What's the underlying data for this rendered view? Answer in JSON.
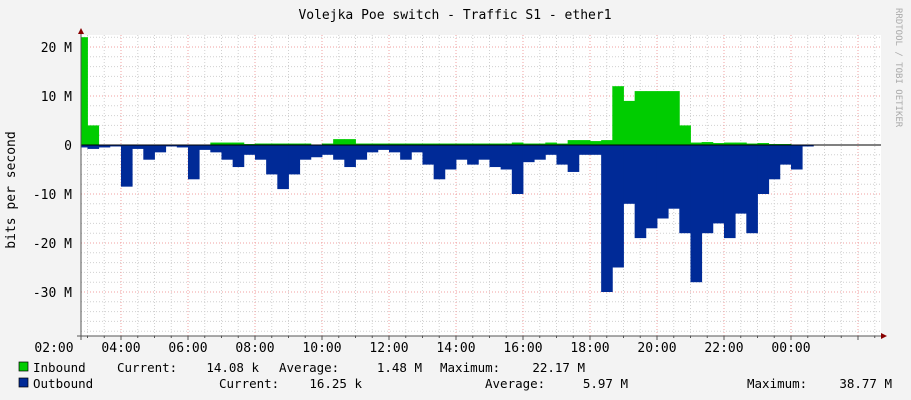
{
  "chart_data": {
    "type": "area",
    "title": "Volejka Poe switch - Traffic S1 - ether1",
    "ylabel": "bits per second",
    "xlabel": "",
    "ylim": [
      -38.8,
      22.4
    ],
    "y_unit": "M",
    "y_ticks": [
      20,
      10,
      0,
      -10,
      -20,
      -30
    ],
    "y_tick_labels": [
      "20 M",
      "10 M",
      "0",
      "-10 M",
      "-20 M",
      "-30 M"
    ],
    "x_tick_labels": [
      "04:00",
      "06:00",
      "08:00",
      "10:00",
      "12:00",
      "14:00",
      "16:00",
      "18:00",
      "20:00",
      "22:00",
      "00:00",
      "02:00"
    ],
    "grid": true,
    "watermark": "RRDTOOL / TOBI OETIKER",
    "x": [
      "02:50",
      "03:10",
      "03:30",
      "03:50",
      "04:10",
      "04:30",
      "04:50",
      "05:10",
      "05:30",
      "05:50",
      "06:10",
      "06:30",
      "06:50",
      "07:10",
      "07:30",
      "07:50",
      "08:10",
      "08:30",
      "08:50",
      "09:10",
      "09:30",
      "09:50",
      "10:10",
      "10:30",
      "10:50",
      "11:10",
      "11:30",
      "11:50",
      "12:10",
      "12:30",
      "12:50",
      "13:10",
      "13:30",
      "13:50",
      "14:10",
      "14:30",
      "14:50",
      "15:10",
      "15:30",
      "15:50",
      "16:10",
      "16:30",
      "16:50",
      "17:10",
      "17:30",
      "17:50",
      "18:10",
      "18:30",
      "18:50",
      "19:10",
      "19:30",
      "19:50",
      "20:10",
      "20:30",
      "20:50",
      "21:10",
      "21:30",
      "21:50",
      "22:10",
      "22:30",
      "22:50",
      "23:10",
      "23:30",
      "23:50",
      "00:10",
      "00:30",
      "00:50",
      "01:10",
      "01:30",
      "01:50",
      "02:10",
      "02:30"
    ],
    "series": [
      {
        "name": "Inbound",
        "color": "#00cc00",
        "values": [
          22,
          4,
          0,
          0,
          0,
          0,
          0,
          0,
          0,
          0.1,
          0.1,
          0.1,
          0.5,
          0.5,
          0.5,
          0.2,
          0.3,
          0.3,
          0.3,
          0.3,
          0.3,
          0.1,
          0.3,
          1.2,
          1.2,
          0.3,
          0.3,
          0.3,
          0.3,
          0.3,
          0.3,
          0.3,
          0.3,
          0.3,
          0.3,
          0.3,
          0.3,
          0.3,
          0.3,
          0.5,
          0.3,
          0.3,
          0.5,
          0.3,
          1,
          1,
          0.8,
          1,
          12,
          9,
          11,
          11,
          11,
          11,
          4,
          0.5,
          0.6,
          0.4,
          0.5,
          0.5,
          0.3,
          0.4,
          0.2,
          0.2,
          0.1,
          0,
          0,
          0,
          0,
          0,
          0,
          0
        ]
      },
      {
        "name": "Outbound",
        "color": "#002a97",
        "values": [
          -0.5,
          -0.8,
          -0.5,
          -0.3,
          -8.5,
          -0.8,
          -3,
          -1.5,
          -0.3,
          -0.5,
          -7,
          -1,
          -1.5,
          -3,
          -4.5,
          -2,
          -3,
          -6,
          -9,
          -6,
          -3,
          -2.5,
          -2,
          -3,
          -4.5,
          -3,
          -1.5,
          -1,
          -1.5,
          -3,
          -1.5,
          -4,
          -7,
          -5,
          -3,
          -4,
          -3,
          -4.5,
          -5,
          -10,
          -3.5,
          -3,
          -2,
          -4,
          -5.5,
          -2,
          -2,
          -30,
          -25,
          -12,
          -19,
          -17,
          -15,
          -13,
          -18,
          -28,
          -18,
          -16,
          -19,
          -14,
          -18,
          -10,
          -7,
          -4,
          -5,
          -0.3,
          -0.2,
          -1,
          -1.5,
          -5,
          0,
          0
        ]
      }
    ]
  },
  "legend": [
    {
      "name": "Inbound",
      "current_label": "Current:",
      "current": "14.08 k",
      "average_label": "Average:",
      "average": "1.48 M",
      "maximum_label": "Maximum:",
      "maximum": "22.17 M"
    },
    {
      "name": "Outbound",
      "current_label": "Current:",
      "current": "16.25 k",
      "average_label": "Average:",
      "average": "5.97 M",
      "maximum_label": "Maximum:",
      "maximum": "38.77 M"
    }
  ]
}
